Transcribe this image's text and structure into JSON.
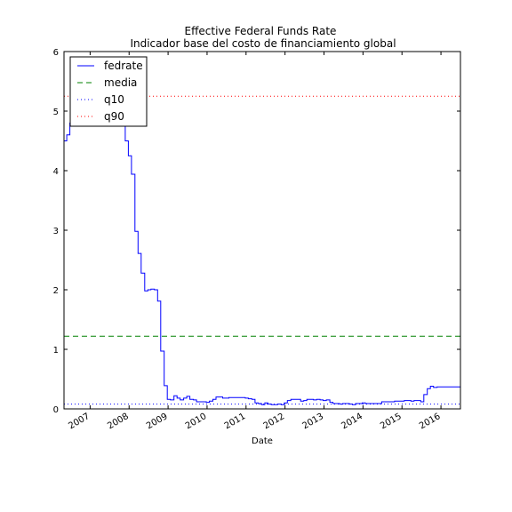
{
  "chart_data": {
    "type": "line",
    "title": "Effective Federal Funds Rate",
    "subtitle": "Indicador base del costo de financiamiento global",
    "xlabel": "Date",
    "ylabel": "",
    "xlim": [
      2006.33,
      2016.5
    ],
    "ylim": [
      0,
      6
    ],
    "yticks": [
      0,
      1,
      2,
      3,
      4,
      5,
      6
    ],
    "xticks": [
      2007,
      2008,
      2009,
      2010,
      2011,
      2012,
      2013,
      2014,
      2015,
      2016
    ],
    "grid": false,
    "legend_position": "upper-left",
    "series": [
      {
        "name": "fedrate",
        "style": "solid",
        "color": "#0000ff",
        "x": [
          2006.33,
          2006.4,
          2006.48,
          2006.56,
          2006.65,
          2006.73,
          2006.81,
          2006.9,
          2006.98,
          2007.06,
          2007.15,
          2007.23,
          2007.31,
          2007.4,
          2007.48,
          2007.56,
          2007.65,
          2007.73,
          2007.81,
          2007.9,
          2007.98,
          2008.06,
          2008.15,
          2008.23,
          2008.31,
          2008.4,
          2008.48,
          2008.56,
          2008.65,
          2008.73,
          2008.81,
          2008.9,
          2008.98,
          2009.06,
          2009.15,
          2009.23,
          2009.31,
          2009.4,
          2009.48,
          2009.56,
          2009.65,
          2009.73,
          2009.81,
          2009.9,
          2009.98,
          2010.06,
          2010.15,
          2010.23,
          2010.31,
          2010.4,
          2010.48,
          2010.56,
          2010.65,
          2010.73,
          2010.81,
          2010.9,
          2010.98,
          2011.06,
          2011.15,
          2011.23,
          2011.31,
          2011.4,
          2011.48,
          2011.56,
          2011.65,
          2011.73,
          2011.81,
          2011.9,
          2011.98,
          2012.06,
          2012.15,
          2012.23,
          2012.31,
          2012.4,
          2012.48,
          2012.56,
          2012.65,
          2012.73,
          2012.81,
          2012.9,
          2012.98,
          2013.06,
          2013.15,
          2013.23,
          2013.31,
          2013.4,
          2013.48,
          2013.56,
          2013.65,
          2013.73,
          2013.81,
          2013.9,
          2013.98,
          2014.06,
          2014.15,
          2014.23,
          2014.31,
          2014.4,
          2014.48,
          2014.56,
          2014.65,
          2014.73,
          2014.81,
          2014.9,
          2014.98,
          2015.06,
          2015.15,
          2015.23,
          2015.31,
          2015.4,
          2015.48,
          2015.56,
          2015.65,
          2015.73,
          2015.81,
          2015.9,
          2015.98,
          2016.06,
          2016.15,
          2016.23,
          2016.31,
          2016.4
        ],
        "y": [
          4.5,
          4.6,
          4.8,
          5.0,
          5.25,
          5.25,
          5.25,
          5.25,
          5.25,
          5.25,
          5.25,
          5.25,
          5.25,
          5.25,
          5.25,
          5.02,
          5.25,
          5.25,
          4.75,
          4.5,
          4.25,
          3.94,
          2.98,
          2.61,
          2.28,
          1.98,
          2.0,
          2.01,
          2.0,
          1.81,
          0.97,
          0.39,
          0.16,
          0.15,
          0.22,
          0.18,
          0.15,
          0.18,
          0.21,
          0.16,
          0.15,
          0.12,
          0.12,
          0.12,
          0.11,
          0.13,
          0.16,
          0.2,
          0.2,
          0.18,
          0.18,
          0.19,
          0.19,
          0.19,
          0.19,
          0.19,
          0.18,
          0.17,
          0.16,
          0.1,
          0.09,
          0.07,
          0.1,
          0.08,
          0.07,
          0.07,
          0.08,
          0.07,
          0.1,
          0.14,
          0.16,
          0.16,
          0.16,
          0.13,
          0.14,
          0.16,
          0.16,
          0.15,
          0.16,
          0.15,
          0.14,
          0.15,
          0.11,
          0.09,
          0.09,
          0.08,
          0.09,
          0.09,
          0.08,
          0.07,
          0.09,
          0.09,
          0.1,
          0.09,
          0.09,
          0.09,
          0.09,
          0.09,
          0.12,
          0.12,
          0.12,
          0.12,
          0.13,
          0.13,
          0.13,
          0.14,
          0.14,
          0.13,
          0.14,
          0.14,
          0.12,
          0.24,
          0.34,
          0.38,
          0.36,
          0.37,
          0.37,
          0.37,
          0.37,
          0.37,
          0.37,
          0.37
        ]
      },
      {
        "name": "media",
        "style": "dashed",
        "color": "#008000",
        "y_constant": 1.22
      },
      {
        "name": "q10",
        "style": "dotted",
        "color": "#0000ff",
        "y_constant": 0.08
      },
      {
        "name": "q90",
        "style": "dotted",
        "color": "#ff0000",
        "y_constant": 5.25
      }
    ]
  }
}
